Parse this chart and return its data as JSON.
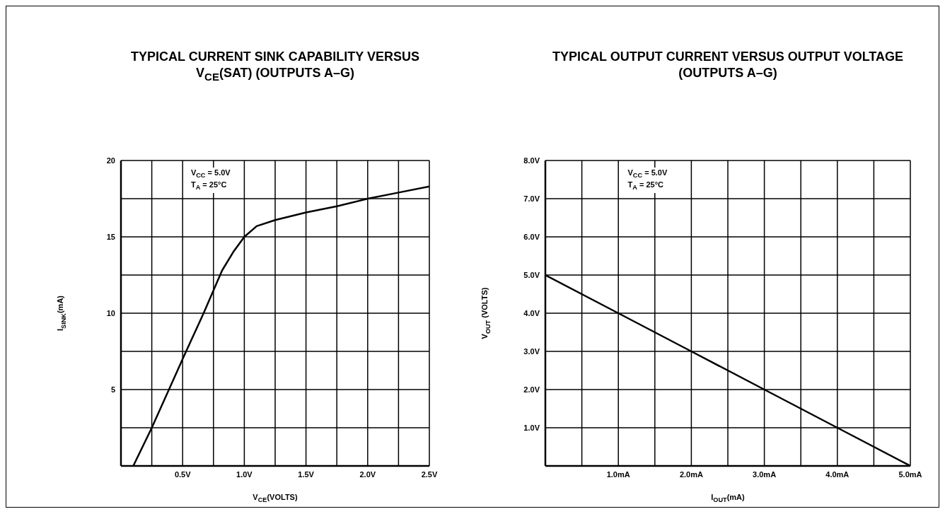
{
  "chart_data": [
    {
      "type": "line",
      "title": "TYPICAL CURRENT SINK CAPABILITY VERSUS V$_{CE}$(SAT) (OUTPUTS A–G)",
      "xlabel": "V$_{CE}$(VOLTS)",
      "ylabel": "I$_{SINK}$(mA)",
      "annotations": [
        "V$_{CC}$ = 5.0V",
        "T$_{A}$ = 25°C"
      ],
      "x": [
        0.1,
        0.25,
        0.5,
        0.67,
        0.82,
        0.91,
        1.0,
        1.1,
        1.25,
        1.5,
        1.75,
        2.0,
        2.25,
        2.5
      ],
      "series": [
        {
          "color": "#000000",
          "values": [
            0,
            2.5,
            7,
            10,
            12.8,
            14,
            15,
            15.7,
            16.1,
            16.6,
            17,
            17.5,
            17.9,
            18.3
          ]
        }
      ],
      "xlim": [
        0,
        2.5
      ],
      "ylim": [
        0,
        20
      ],
      "xticks": [
        {
          "value": 0,
          "label": null
        },
        {
          "value": 0.25,
          "label": null
        },
        {
          "value": 0.5,
          "label": "0.5V"
        },
        {
          "value": 0.75,
          "label": null
        },
        {
          "value": 1,
          "label": "1.0V"
        },
        {
          "value": 1.25,
          "label": null
        },
        {
          "value": 1.5,
          "label": "1.5V"
        },
        {
          "value": 1.75,
          "label": null
        },
        {
          "value": 2,
          "label": "2.0V"
        },
        {
          "value": 2.25,
          "label": null
        },
        {
          "value": 2.5,
          "label": "2.5V"
        }
      ],
      "yticks": [
        {
          "value": 0,
          "label": null
        },
        {
          "value": 2.5,
          "label": null
        },
        5,
        {
          "value": 7.5,
          "label": null
        },
        10,
        {
          "value": 12.5,
          "label": null
        },
        15,
        {
          "value": 17.5,
          "label": null
        },
        20
      ],
      "grid": true,
      "line_style": "solid"
    },
    {
      "type": "line",
      "title": "TYPICAL OUTPUT CURRENT VERSUS OUTPUT VOLTAGE (OUTPUTS A–G)",
      "xlabel": "I$_{OUT}$(mA)",
      "ylabel": "V$_{OUT}$ (VOLTS)",
      "annotations": [
        "V$_{CC}$ = 5.0V",
        "T$_{A}$ = 25°C"
      ],
      "x": [
        0,
        1,
        2,
        3,
        4,
        5
      ],
      "series": [
        {
          "color": "#000000",
          "values": [
            5,
            4,
            3,
            2,
            1,
            0
          ]
        }
      ],
      "xlim": [
        0,
        5
      ],
      "ylim": [
        0,
        8
      ],
      "xticks": [
        {
          "value": 0,
          "label": null
        },
        {
          "value": 0.5,
          "label": null
        },
        {
          "value": 1,
          "label": "1.0mA"
        },
        {
          "value": 1.5,
          "label": null
        },
        {
          "value": 2,
          "label": "2.0mA"
        },
        {
          "value": 2.5,
          "label": null
        },
        {
          "value": 3,
          "label": "3.0mA"
        },
        {
          "value": 3.5,
          "label": null
        },
        {
          "value": 4,
          "label": "4.0mA"
        },
        {
          "value": 4.5,
          "label": null
        },
        {
          "value": 5,
          "label": "5.0mA"
        }
      ],
      "yticks": [
        {
          "value": 0,
          "label": null
        },
        {
          "value": 1,
          "label": "1.0V"
        },
        {
          "value": 2,
          "label": "2.0V"
        },
        {
          "value": 3,
          "label": "3.0V"
        },
        {
          "value": 4,
          "label": "4.0V"
        },
        {
          "value": 5,
          "label": "5.0V"
        },
        {
          "value": 6,
          "label": "6.0V"
        },
        {
          "value": 7,
          "label": "7.0V"
        },
        {
          "value": 8,
          "label": "8.0V"
        }
      ],
      "grid": true,
      "line_style": "solid"
    }
  ]
}
